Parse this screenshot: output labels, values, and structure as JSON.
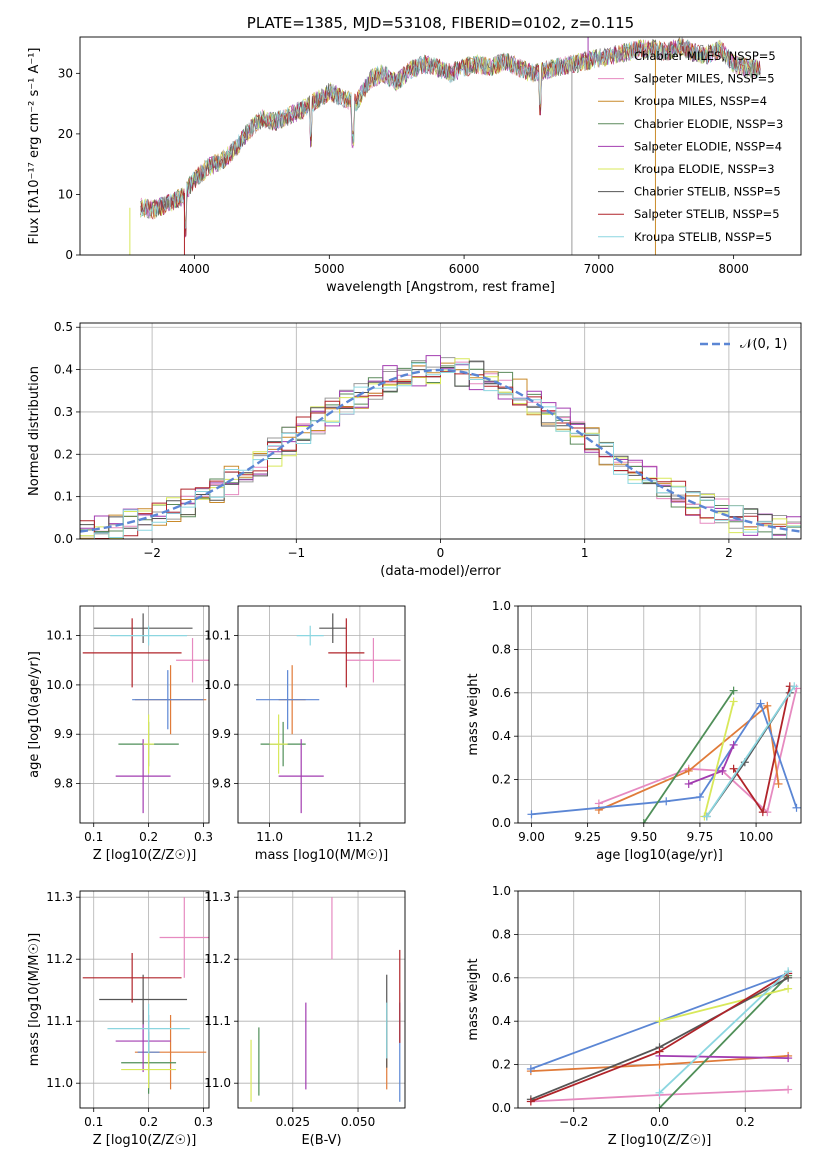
{
  "colors": {
    "series": [
      "#9a9a9a",
      "#e68ac0",
      "#c98a2a",
      "#5b8a5b",
      "#a23cb0",
      "#d8e85a",
      "#555555",
      "#b0242a",
      "#8cd6e0"
    ],
    "normal_curve": "#5b86d4",
    "scatter_series": [
      "#e68ac0",
      "#e07b39",
      "#5b86d4",
      "#4f8f58",
      "#a23cb0",
      "#d8e85a",
      "#555555",
      "#b0242a",
      "#8cd6e0"
    ]
  },
  "chart_data": [
    {
      "type": "line",
      "title": "PLATE=1385, MJD=53108, FIBERID=0102, z=0.115",
      "xlabel": "wavelength [Angstrom, rest frame]",
      "ylabel": "Flux [fλ10⁻¹⁷ erg cm⁻² s⁻¹ A⁻¹]",
      "xlim": [
        3150,
        8500
      ],
      "ylim": [
        0,
        36
      ],
      "xticks": [
        4000,
        5000,
        6000,
        7000,
        8000
      ],
      "yticks": [
        0,
        10,
        20,
        30
      ],
      "legend_position": "top-right",
      "series": [
        {
          "name": "Chabrier MILES, NSSP=5"
        },
        {
          "name": "Salpeter MILES, NSSP=5"
        },
        {
          "name": "Kroupa MILES, NSSP=4"
        },
        {
          "name": "Chabrier ELODIE, NSSP=3"
        },
        {
          "name": "Salpeter ELODIE, NSSP=4"
        },
        {
          "name": "Kroupa ELODIE, NSSP=3"
        },
        {
          "name": "Chabrier STELIB, NSSP=5"
        },
        {
          "name": "Salpeter STELIB, NSSP=5"
        },
        {
          "name": "Kroupa STELIB, NSSP=5"
        }
      ],
      "spectrum_x": [
        3600,
        3700,
        3800,
        3900,
        4000,
        4100,
        4200,
        4300,
        4400,
        4500,
        4600,
        4700,
        4800,
        4900,
        5000,
        5100,
        5200,
        5300,
        5400,
        5500,
        5600,
        5700,
        5800,
        5900,
        6000,
        6100,
        6200,
        6300,
        6400,
        6500,
        6600,
        6700,
        6800,
        6900,
        7000,
        7100,
        7200,
        7300,
        7400,
        7500,
        7600,
        7700,
        7800,
        7900,
        8000,
        8100,
        8200
      ],
      "spectrum_y": [
        7.8,
        7.5,
        8.5,
        9.5,
        12.5,
        14.5,
        15.5,
        17.5,
        20.5,
        22.5,
        22.0,
        23.0,
        24.0,
        25.5,
        27.0,
        26.0,
        25.0,
        29.0,
        30.0,
        28.5,
        30.5,
        31.5,
        31.0,
        30.0,
        31.0,
        31.5,
        31.0,
        32.0,
        31.0,
        30.0,
        30.5,
        31.0,
        31.5,
        32.0,
        32.5,
        33.0,
        33.5,
        34.0,
        34.0,
        33.5,
        34.5,
        33.5,
        33.0,
        34.0,
        31.5,
        31.0,
        30.5
      ]
    },
    {
      "type": "bar",
      "xlabel": "(data-model)/error",
      "ylabel": "Normed distribution",
      "xlim": [
        -2.5,
        2.5
      ],
      "ylim": [
        0,
        0.51
      ],
      "xticks": [
        -2,
        -1,
        0,
        1,
        2
      ],
      "xtick_labels": [
        "−2",
        "−1",
        "0",
        "1",
        "2"
      ],
      "yticks": [
        0.0,
        0.1,
        0.2,
        0.3,
        0.4,
        0.5
      ],
      "ytick_labels": [
        "0.0",
        "0.1",
        "0.2",
        "0.3",
        "0.4",
        "0.5"
      ],
      "legend_label": "𝒩(0, 1)",
      "legend_position": "top-right",
      "bin_width": 0.1,
      "bin_start": -2.5
    },
    {
      "type": "scatter",
      "xlabel": "Z [log10(Z/Z☉)]",
      "ylabel": "age  [log10(age/yr)]",
      "xlim": [
        0.075,
        0.31
      ],
      "ylim": [
        9.72,
        10.16
      ],
      "xticks": [
        0.1,
        0.2,
        0.3
      ],
      "xtick_labels": [
        "0.1",
        "0.2",
        "0.3"
      ],
      "yticks": [
        9.8,
        9.9,
        10.0,
        10.1
      ],
      "ytick_labels": [
        "9.8",
        "9.9",
        "10.0",
        "10.1"
      ],
      "points": [
        {
          "x": 0.28,
          "y": 10.05,
          "xerr": 0.03,
          "yerr": 0.045
        },
        {
          "x": 0.24,
          "y": 9.97,
          "xerr": 0.065,
          "yerr": 0.07
        },
        {
          "x": 0.235,
          "y": 9.97,
          "xerr": 0.065,
          "yerr": 0.06
        },
        {
          "x": 0.2,
          "y": 9.88,
          "xerr": 0.055,
          "yerr": 0.045
        },
        {
          "x": 0.19,
          "y": 9.815,
          "xerr": 0.05,
          "yerr": 0.075
        },
        {
          "x": 0.2,
          "y": 9.88,
          "xerr": 0.01,
          "yerr": 0.06
        },
        {
          "x": 0.19,
          "y": 10.115,
          "xerr": 0.09,
          "yerr": 0.03
        },
        {
          "x": 0.17,
          "y": 10.065,
          "xerr": 0.09,
          "yerr": 0.07
        },
        {
          "x": 0.2,
          "y": 10.1,
          "xerr": 0.07,
          "yerr": 0.02
        }
      ]
    },
    {
      "type": "scatter",
      "xlabel": "mass [log10(M/M☉)]",
      "xlim": [
        10.93,
        11.3
      ],
      "ylim": [
        9.72,
        10.16
      ],
      "xticks": [
        11.0,
        11.2
      ],
      "xtick_labels": [
        "11.0",
        "11.2"
      ],
      "yticks": [
        9.8,
        9.9,
        10.0,
        10.1
      ],
      "ytick_labels": [
        "9.8",
        "9.9",
        "10.0",
        "10.1"
      ],
      "points": [
        {
          "x": 11.23,
          "y": 10.05,
          "xerr": 0.06,
          "yerr": 0.045
        },
        {
          "x": 11.05,
          "y": 9.97,
          "xerr": 0.03,
          "yerr": 0.07
        },
        {
          "x": 11.04,
          "y": 9.97,
          "xerr": 0.07,
          "yerr": 0.06
        },
        {
          "x": 11.03,
          "y": 9.88,
          "xerr": 0.05,
          "yerr": 0.045
        },
        {
          "x": 11.07,
          "y": 9.815,
          "xerr": 0.05,
          "yerr": 0.075
        },
        {
          "x": 11.02,
          "y": 9.88,
          "xerr": 0.02,
          "yerr": 0.06
        },
        {
          "x": 11.14,
          "y": 10.115,
          "xerr": 0.03,
          "yerr": 0.03
        },
        {
          "x": 11.17,
          "y": 10.065,
          "xerr": 0.04,
          "yerr": 0.07
        },
        {
          "x": 11.09,
          "y": 10.1,
          "xerr": 0.03,
          "yerr": 0.02
        }
      ]
    },
    {
      "type": "line",
      "xlabel": "age  [log10(age/yr)]",
      "ylabel": "mass weight",
      "xlim": [
        8.94,
        10.2
      ],
      "ylim": [
        0,
        1.0
      ],
      "xticks": [
        9.0,
        9.25,
        9.5,
        9.75,
        10.0
      ],
      "xtick_labels": [
        "9.00",
        "9.25",
        "9.50",
        "9.75",
        "10.00"
      ],
      "yticks": [
        0.0,
        0.2,
        0.4,
        0.6,
        0.8,
        1.0
      ],
      "ytick_labels": [
        "0.0",
        "0.2",
        "0.4",
        "0.6",
        "0.8",
        "1.0"
      ],
      "series": [
        {
          "x": [
            9.3,
            9.7,
            9.85,
            10.05,
            10.18
          ],
          "y": [
            0.09,
            0.25,
            0.24,
            0.05,
            0.62
          ]
        },
        {
          "x": [
            9.3,
            9.7,
            10.05,
            10.1
          ],
          "y": [
            0.06,
            0.24,
            0.54,
            0.18
          ]
        },
        {
          "x": [
            9.0,
            9.6,
            9.75,
            10.02,
            10.18
          ],
          "y": [
            0.04,
            0.1,
            0.12,
            0.55,
            0.07
          ]
        },
        {
          "x": [
            9.5,
            9.9
          ],
          "y": [
            0.0,
            0.61
          ]
        },
        {
          "x": [
            9.7,
            9.85,
            9.9
          ],
          "y": [
            0.18,
            0.24,
            0.36
          ]
        },
        {
          "x": [
            9.77,
            9.9
          ],
          "y": [
            0.03,
            0.56
          ]
        },
        {
          "x": [
            9.78,
            9.95,
            10.15
          ],
          "y": [
            0.03,
            0.28,
            0.6
          ]
        },
        {
          "x": [
            9.9,
            10.03,
            10.15
          ],
          "y": [
            0.25,
            0.05,
            0.63
          ]
        },
        {
          "x": [
            9.78,
            10.17
          ],
          "y": [
            0.03,
            0.63
          ]
        }
      ]
    },
    {
      "type": "scatter",
      "xlabel": "Z [log10(Z/Z☉)]",
      "ylabel": "mass [log10(M/M☉)]",
      "xlim": [
        0.075,
        0.31
      ],
      "ylim": [
        10.96,
        11.31
      ],
      "xticks": [
        0.1,
        0.2,
        0.3
      ],
      "xtick_labels": [
        "0.1",
        "0.2",
        "0.3"
      ],
      "yticks": [
        11.0,
        11.1,
        11.2,
        11.3
      ],
      "ytick_labels": [
        "11.0",
        "11.1",
        "11.2",
        "11.3"
      ],
      "points": [
        {
          "x": 0.265,
          "y": 11.235,
          "xerr": 0.045,
          "yerr": 0.065
        },
        {
          "x": 0.24,
          "y": 11.05,
          "xerr": 0.065,
          "yerr": 0.06
        },
        {
          "x": 0.2,
          "y": 11.05,
          "xerr": 0.02,
          "yerr": 0.06
        },
        {
          "x": 0.2,
          "y": 11.033,
          "xerr": 0.05,
          "yerr": 0.05
        },
        {
          "x": 0.19,
          "y": 11.068,
          "xerr": 0.05,
          "yerr": 0.05
        },
        {
          "x": 0.2,
          "y": 11.022,
          "xerr": 0.05,
          "yerr": 0.03
        },
        {
          "x": 0.19,
          "y": 11.135,
          "xerr": 0.08,
          "yerr": 0.04
        },
        {
          "x": 0.17,
          "y": 11.17,
          "xerr": 0.09,
          "yerr": 0.04
        },
        {
          "x": 0.2,
          "y": 11.088,
          "xerr": 0.075,
          "yerr": 0.04
        }
      ]
    },
    {
      "type": "scatter",
      "xlabel": "E(B-V)",
      "xlim": [
        0.004,
        0.068
      ],
      "ylim": [
        10.96,
        11.31
      ],
      "xticks": [
        0.025,
        0.05
      ],
      "xtick_labels": [
        "0.025",
        "0.050"
      ],
      "yticks": [
        11.0,
        11.1,
        11.2,
        11.3
      ],
      "ytick_labels": [
        "11.0",
        "11.1",
        "11.2",
        "11.3"
      ],
      "points": [
        {
          "x": 0.04,
          "y": 11.25,
          "yerr": 0.05
        },
        {
          "x": 0.061,
          "y": 11.06,
          "yerr": 0.07
        },
        {
          "x": 0.066,
          "y": 11.05,
          "yerr": 0.08
        },
        {
          "x": 0.012,
          "y": 11.035,
          "yerr": 0.055
        },
        {
          "x": 0.03,
          "y": 11.06,
          "yerr": 0.07
        },
        {
          "x": 0.009,
          "y": 11.02,
          "yerr": 0.05
        },
        {
          "x": 0.061,
          "y": 11.1,
          "yerr": 0.075
        },
        {
          "x": 0.066,
          "y": 11.14,
          "yerr": 0.075
        },
        {
          "x": 0.061,
          "y": 11.085,
          "yerr": 0.045
        }
      ]
    },
    {
      "type": "line",
      "xlabel": "Z [log10(Z/Z☉)]",
      "ylabel": "mass weight",
      "xlim": [
        -0.33,
        0.33
      ],
      "ylim": [
        0,
        1.0
      ],
      "xticks": [
        -0.2,
        0.0,
        0.2
      ],
      "xtick_labels": [
        "−0.2",
        "0.0",
        "0.2"
      ],
      "yticks": [
        0.0,
        0.2,
        0.4,
        0.6,
        0.8,
        1.0
      ],
      "ytick_labels": [
        "0.0",
        "0.2",
        "0.4",
        "0.6",
        "0.8",
        "1.0"
      ],
      "series": [
        {
          "x": [
            -0.3,
            0.0,
            0.3
          ],
          "y": [
            0.03,
            0.06,
            0.085
          ]
        },
        {
          "x": [
            -0.3,
            0.0,
            0.3
          ],
          "y": [
            0.17,
            0.2,
            0.24
          ]
        },
        {
          "x": [
            -0.3,
            0.3
          ],
          "y": [
            0.18,
            0.62
          ]
        },
        {
          "x": [
            0.0,
            0.3
          ],
          "y": [
            0.0,
            0.61
          ]
        },
        {
          "x": [
            0.0,
            0.3
          ],
          "y": [
            0.24,
            0.23
          ]
        },
        {
          "x": [
            0.0,
            0.3
          ],
          "y": [
            0.4,
            0.55
          ]
        },
        {
          "x": [
            -0.3,
            0.0,
            0.3
          ],
          "y": [
            0.04,
            0.28,
            0.6
          ]
        },
        {
          "x": [
            -0.3,
            0.0,
            0.3
          ],
          "y": [
            0.03,
            0.26,
            0.62
          ]
        },
        {
          "x": [
            0.0,
            0.3
          ],
          "y": [
            0.07,
            0.63
          ]
        }
      ]
    }
  ]
}
